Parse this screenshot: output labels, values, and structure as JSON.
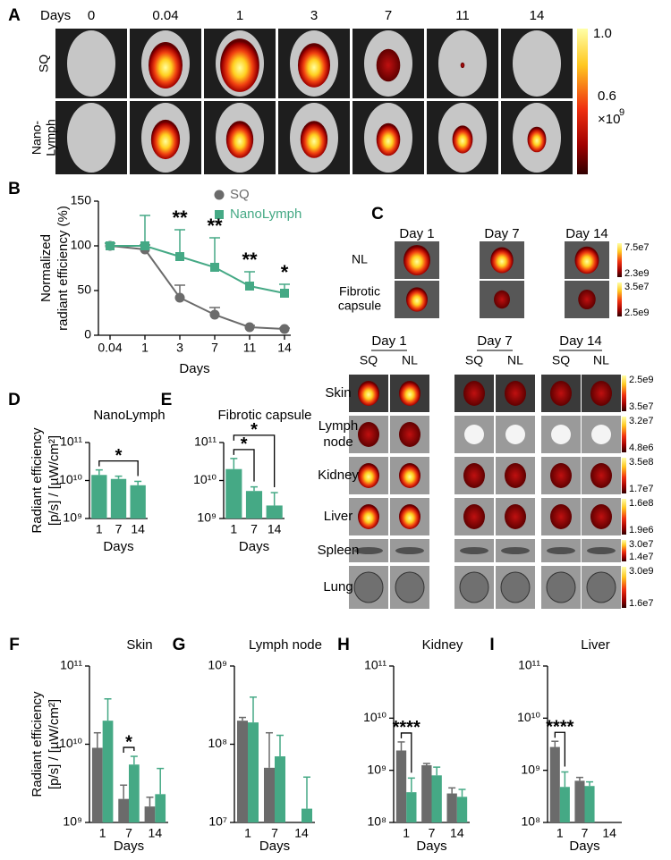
{
  "panel_labels": [
    "A",
    "B",
    "C",
    "D",
    "E",
    "F",
    "G",
    "H",
    "I"
  ],
  "panel_a": {
    "days_label": "Days",
    "days": [
      "0",
      "0.04",
      "1",
      "3",
      "7",
      "11",
      "14"
    ],
    "rows": [
      [
        "SQ"
      ],
      [
        "Nano-",
        "Lymph"
      ]
    ],
    "colorbar": {
      "top": "1.0",
      "mid": "0.6",
      "unit": "×10",
      "exponent": "9"
    }
  },
  "panel_c": {
    "top": {
      "days": [
        "Day 1",
        "Day 7",
        "Day 14"
      ],
      "rows": [
        {
          "label": [
            "NL"
          ],
          "colorbar": [
            "7.5e7",
            "2.3e9"
          ]
        },
        {
          "label": [
            "Fibrotic",
            "capsule"
          ],
          "colorbar": [
            "3.5e7",
            "2.5e9"
          ]
        }
      ]
    },
    "bottom": {
      "days": [
        "Day 1",
        "Day 7",
        "Day 14"
      ],
      "groups": [
        "SQ",
        "NL",
        "SQ",
        "NL",
        "SQ",
        "NL"
      ],
      "rows": [
        {
          "label": [
            "Skin"
          ],
          "colorbar": [
            "2.5e9",
            "3.5e7"
          ]
        },
        {
          "label": [
            "Lymph",
            "node"
          ],
          "colorbar": [
            "3.2e7",
            "4.8e6"
          ]
        },
        {
          "label": [
            "Kidney"
          ],
          "colorbar": [
            "3.5e8",
            "1.7e7"
          ]
        },
        {
          "label": [
            "Liver"
          ],
          "colorbar": [
            "1.6e8",
            "1.9e6"
          ]
        },
        {
          "label": [
            "Spleen"
          ],
          "colorbar": [
            "3.0e7",
            "1.4e7"
          ]
        },
        {
          "label": [
            "Lung"
          ],
          "colorbar": [
            "3.0e9",
            "1.6e7"
          ]
        }
      ]
    }
  },
  "chart_data": [
    {
      "type": "line",
      "xlabel": "Days",
      "ylabel": [
        "Normalized",
        "radiant efficiency (%)"
      ],
      "categories": [
        "0.04",
        "1",
        "3",
        "7",
        "11",
        "14"
      ],
      "ylim": [
        0,
        150
      ],
      "yticks": [
        0,
        50,
        100,
        150
      ],
      "legend": "upper right",
      "series": [
        {
          "name": "SQ",
          "color": "#6b6b6b",
          "marker": "circle",
          "values": [
            100,
            96,
            42,
            23,
            9,
            7
          ],
          "errors": [
            3,
            5,
            14,
            8,
            2,
            1
          ]
        },
        {
          "name": "NanoLymph",
          "color": "#45a985",
          "marker": "square",
          "values": [
            100,
            100,
            88,
            76,
            55,
            47
          ],
          "errors": [
            3,
            34,
            30,
            33,
            16,
            10
          ]
        }
      ],
      "annotations": [
        {
          "text": "**",
          "category": "3"
        },
        {
          "text": "**",
          "category": "7"
        },
        {
          "text": "**",
          "category": "11"
        },
        {
          "text": "*",
          "category": "14"
        }
      ]
    },
    {
      "type": "bar",
      "title": "NanoLymph",
      "xlabel": "Days",
      "ylabel": [
        "Radiant efficiency",
        "[p/s] / [µW/cm²]"
      ],
      "yscale": "log",
      "ylim": [
        1000000000.0,
        100000000000.0
      ],
      "yticks": [
        {
          "value": 1000000000.0,
          "label": "10⁹"
        },
        {
          "value": 10000000000.0,
          "label": "10¹⁰"
        },
        {
          "value": 100000000000.0,
          "label": "10¹¹"
        }
      ],
      "categories": [
        "1",
        "7",
        "14"
      ],
      "series": [
        {
          "color": "#45a985",
          "values": [
            14000000000.0,
            11000000000.0,
            7500000000.0
          ],
          "errors": [
            5000000000.0,
            2000000000.0,
            2000000000.0
          ]
        }
      ],
      "annotations": [
        {
          "text": "*",
          "from": "1",
          "to": "14"
        }
      ]
    },
    {
      "type": "bar",
      "title": "Fibrotic capsule",
      "xlabel": "Days",
      "yscale": "log",
      "ylim": [
        1000000000.0,
        100000000000.0
      ],
      "yticks": [
        {
          "value": 1000000000.0,
          "label": "10⁹"
        },
        {
          "value": 10000000000.0,
          "label": "10¹⁰"
        },
        {
          "value": 100000000000.0,
          "label": "10¹¹"
        }
      ],
      "categories": [
        "1",
        "7",
        "14"
      ],
      "series": [
        {
          "color": "#45a985",
          "values": [
            20000000000.0,
            5300000000.0,
            2200000000.0
          ],
          "errors": [
            18000000000.0,
            1500000000.0,
            2600000000.0
          ]
        }
      ],
      "annotations": [
        {
          "text": "*",
          "from": "1",
          "to": "7"
        },
        {
          "text": "*",
          "from": "1",
          "to": "14"
        }
      ]
    },
    {
      "type": "bar",
      "title": "Skin",
      "xlabel": "Days",
      "ylabel": [
        "Radiant efficiency",
        "[p/s] / [µW/cm²]"
      ],
      "yscale": "log",
      "ylim": [
        1000000000.0,
        100000000000.0
      ],
      "yticks": [
        {
          "value": 1000000000.0,
          "label": "10⁹"
        },
        {
          "value": 10000000000.0,
          "label": "10¹⁰"
        },
        {
          "value": 100000000000.0,
          "label": "10¹¹"
        }
      ],
      "categories": [
        "1",
        "7",
        "14"
      ],
      "series": [
        {
          "color": "#6b6b6b",
          "values": [
            9000000000.0,
            2000000000.0,
            1600000000.0
          ],
          "errors": [
            5000000000.0,
            1000000000.0,
            500000000.0
          ]
        },
        {
          "color": "#45a985",
          "values": [
            20000000000.0,
            5500000000.0,
            2300000000.0
          ],
          "errors": [
            18000000000.0,
            1500000000.0,
            2600000000.0
          ]
        }
      ],
      "annotations": [
        {
          "text": "*",
          "category": "7"
        }
      ]
    },
    {
      "type": "bar",
      "title": "Lymph node",
      "xlabel": "Days",
      "yscale": "log",
      "ylim": [
        10000000.0,
        1000000000.0
      ],
      "yticks": [
        {
          "value": 10000000.0,
          "label": "10⁷"
        },
        {
          "value": 100000000.0,
          "label": "10⁸"
        },
        {
          "value": 1000000000.0,
          "label": "10⁹"
        }
      ],
      "categories": [
        "1",
        "7",
        "14"
      ],
      "series": [
        {
          "color": "#6b6b6b",
          "values": [
            200000000.0,
            50000000.0,
            null
          ],
          "errors": [
            20000000.0,
            90000000.0,
            null
          ]
        },
        {
          "color": "#45a985",
          "values": [
            190000000.0,
            70000000.0,
            15000000.0
          ],
          "errors": [
            210000000.0,
            60000000.0,
            23000000.0
          ]
        }
      ],
      "annotations": []
    },
    {
      "type": "bar",
      "title": "Kidney",
      "xlabel": "Days",
      "yscale": "log",
      "ylim": [
        100000000.0,
        100000000000.0
      ],
      "yticks": [
        {
          "value": 100000000.0,
          "label": "10⁸"
        },
        {
          "value": 1000000000.0,
          "label": "10⁹"
        },
        {
          "value": 10000000000.0,
          "label": "10¹⁰"
        },
        {
          "value": 100000000000.0,
          "label": "10¹¹"
        }
      ],
      "categories": [
        "1",
        "7",
        "14"
      ],
      "series": [
        {
          "color": "#6b6b6b",
          "values": [
            2400000000.0,
            1250000000.0,
            360000000.0
          ],
          "errors": [
            1100000000.0,
            100000000.0,
            100000000.0
          ]
        },
        {
          "color": "#45a985",
          "values": [
            380000000.0,
            800000000.0,
            310000000.0
          ],
          "errors": [
            330000000.0,
            350000000.0,
            120000000.0
          ]
        }
      ],
      "annotations": [
        {
          "text": "****",
          "category": "1"
        }
      ]
    },
    {
      "type": "bar",
      "title": "Liver",
      "xlabel": "Days",
      "yscale": "log",
      "ylim": [
        100000000.0,
        100000000000.0
      ],
      "yticks": [
        {
          "value": 100000000.0,
          "label": "10⁸"
        },
        {
          "value": 1000000000.0,
          "label": "10⁹"
        },
        {
          "value": 10000000000.0,
          "label": "10¹⁰"
        },
        {
          "value": 100000000000.0,
          "label": "10¹¹"
        }
      ],
      "categories": [
        "1",
        "7",
        "14"
      ],
      "series": [
        {
          "color": "#6b6b6b",
          "values": [
            2800000000.0,
            630000000.0,
            null
          ],
          "errors": [
            800000000.0,
            100000000.0,
            null
          ]
        },
        {
          "color": "#45a985",
          "values": [
            480000000.0,
            500000000.0,
            null
          ],
          "errors": [
            450000000.0,
            100000000.0,
            null
          ]
        }
      ],
      "annotations": [
        {
          "text": "****",
          "category": "1"
        }
      ]
    }
  ]
}
